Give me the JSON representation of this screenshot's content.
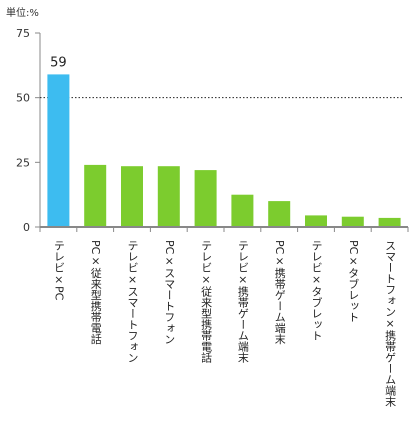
{
  "unit_text": "単位:%",
  "colors": {
    "highlight": "#3dbcf0",
    "bar": "#7ccc2e",
    "axis": "#888888",
    "text": "#333333"
  },
  "chart_data": {
    "type": "bar",
    "categories": [
      "テレビ×PC",
      "PC×従来型携帯電話",
      "テレビ×スマートフォン",
      "PC×スマートフォン",
      "テレビ×従来型携帯電話",
      "テレビ×携帯ゲーム端末",
      "PC×携帯ゲーム端末",
      "テレビ×タブレット",
      "PC×タブレット",
      "スマートフォン×携帯ゲーム端末"
    ],
    "values": [
      59,
      24,
      23.5,
      23.5,
      22,
      12.5,
      10,
      4.5,
      4,
      3.5
    ],
    "highlight_index": 0,
    "data_labels": {
      "0": "59"
    },
    "ylim": [
      0,
      75
    ],
    "yticks": [
      0,
      25,
      50,
      75
    ],
    "reference_line": 50,
    "title": "",
    "xlabel": "",
    "ylabel": ""
  }
}
